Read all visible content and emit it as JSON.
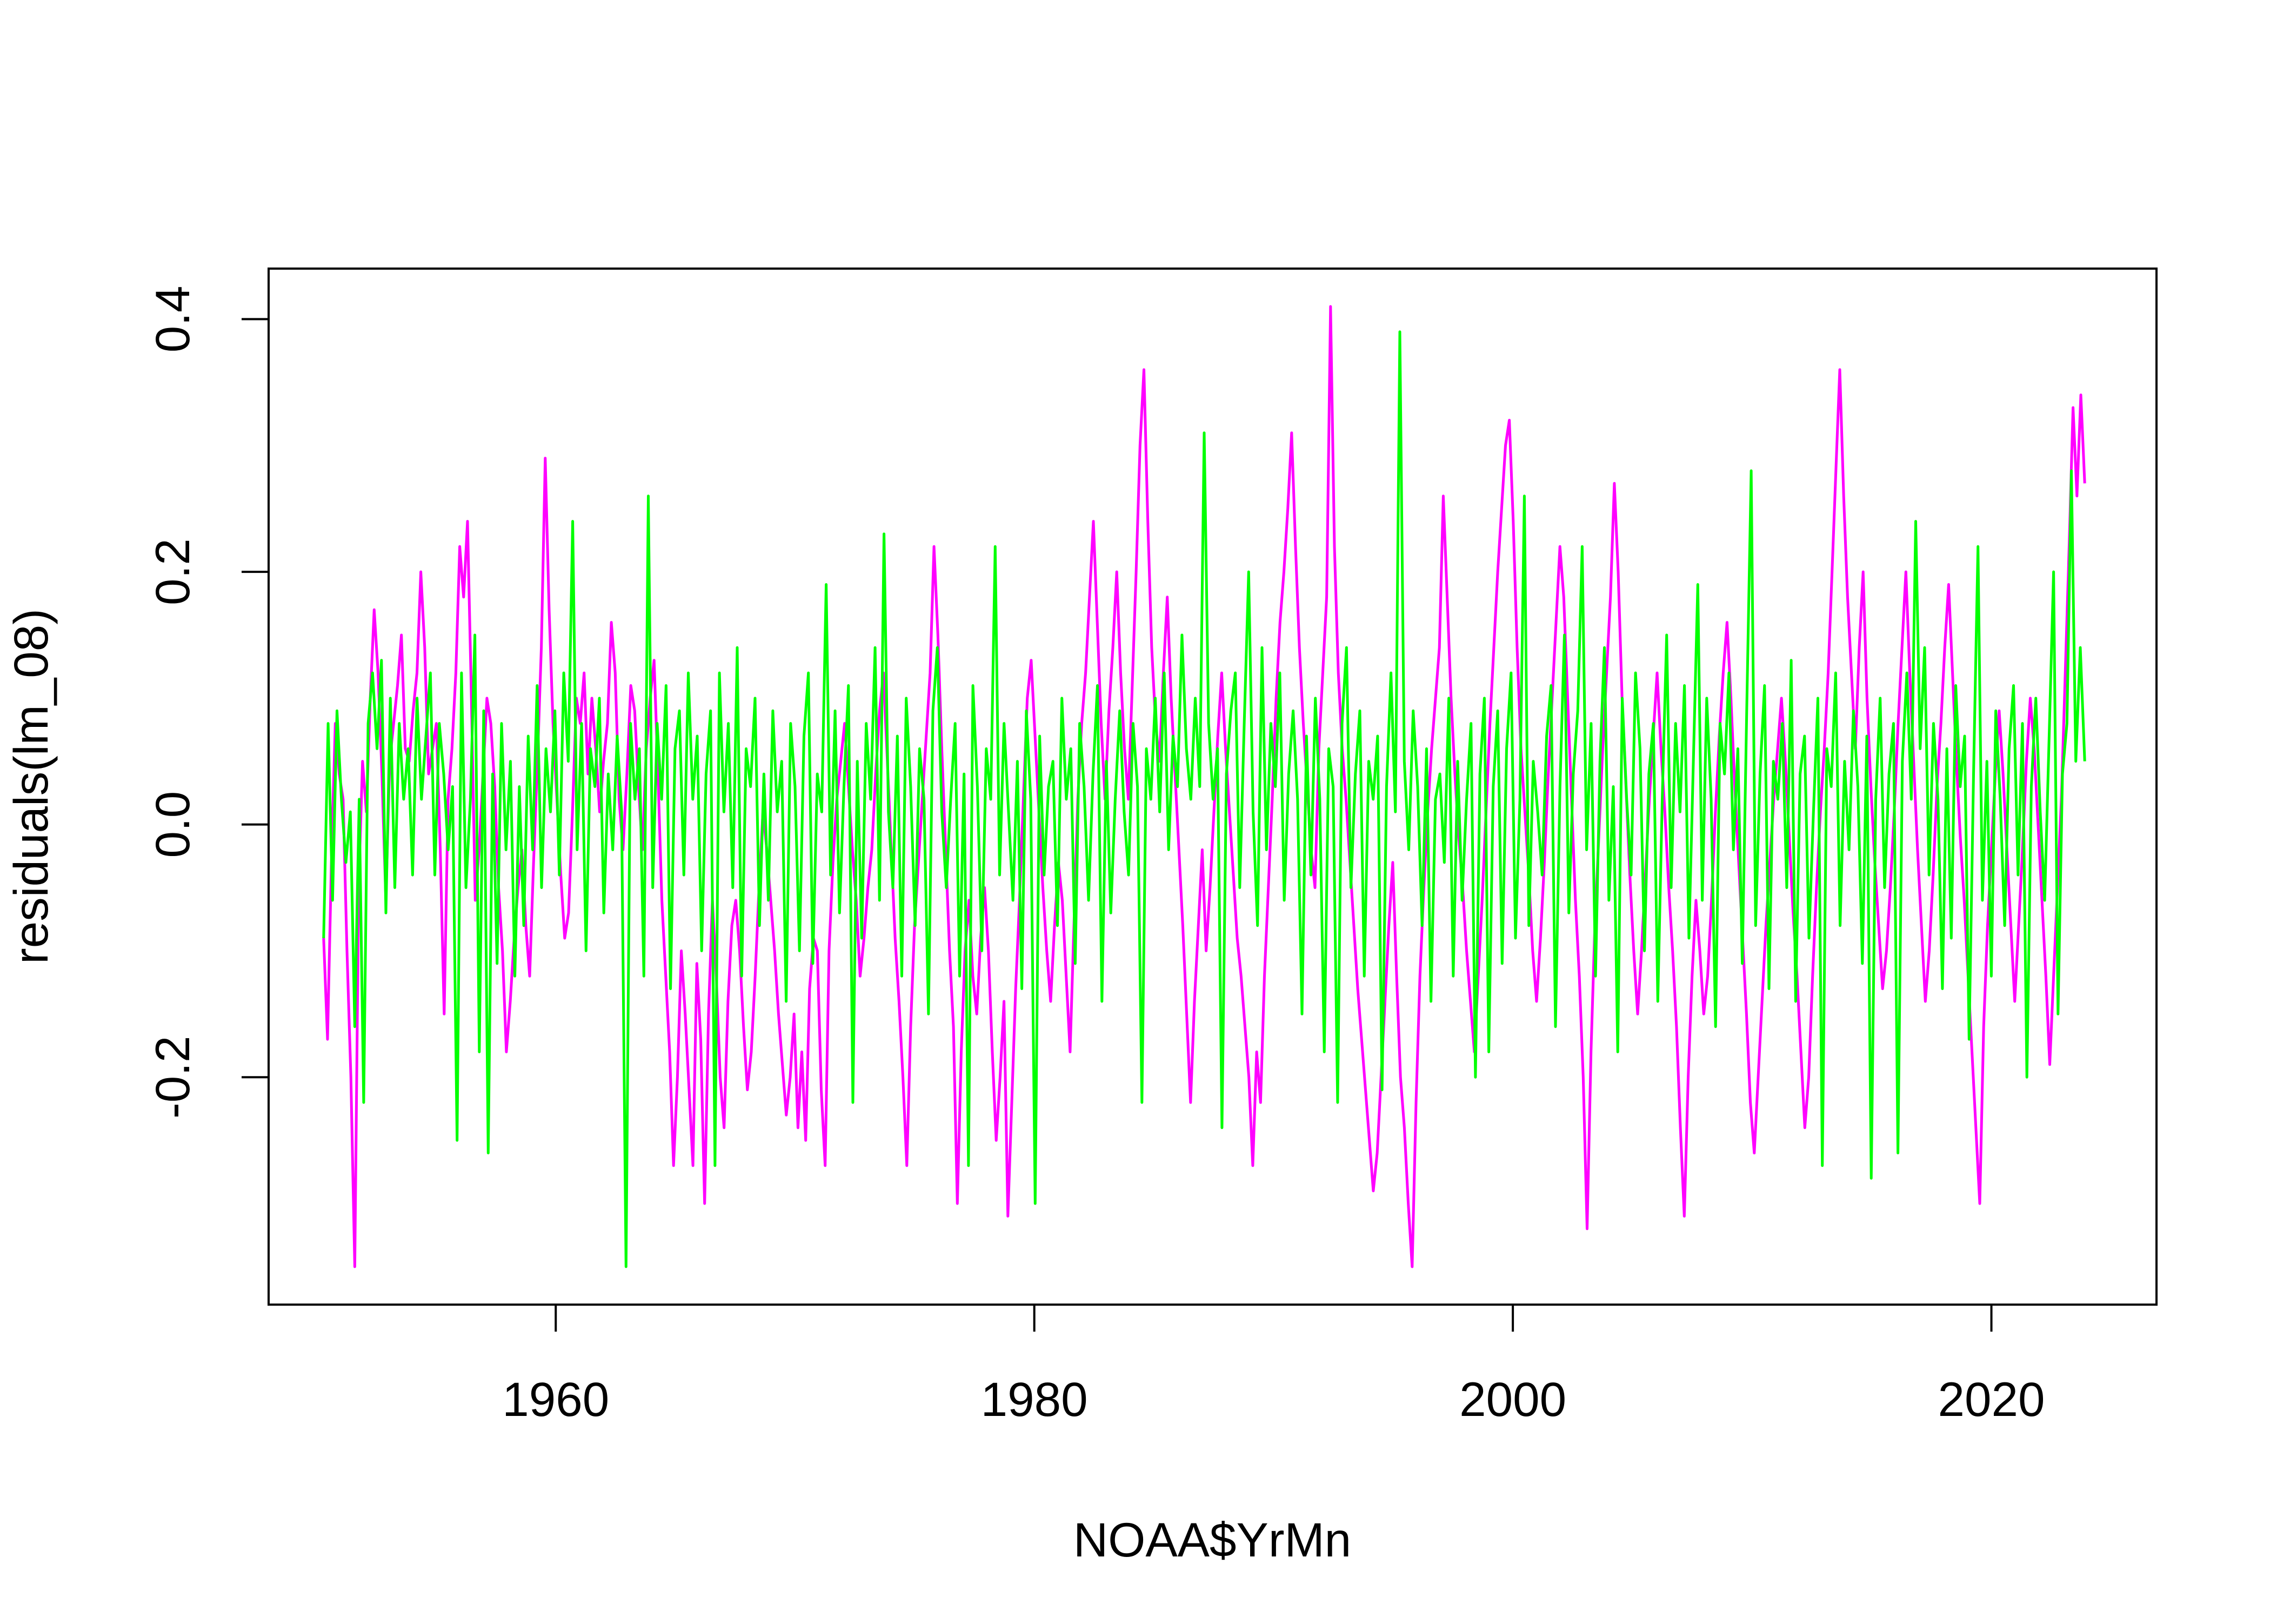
{
  "chart_data": {
    "type": "line",
    "title": "",
    "xlabel": "NOAA$YrMn",
    "ylabel": "residuals(lm_08)",
    "xlim": [
      1948.0,
      2026.9
    ],
    "ylim": [
      -0.38,
      0.44
    ],
    "x_ticks": [
      1960,
      1980,
      2000,
      2020
    ],
    "x_tick_labels": [
      "1960",
      "1980",
      "2000",
      "2020"
    ],
    "y_ticks": [
      -0.2,
      0.0,
      0.2,
      0.4
    ],
    "y_tick_labels": [
      "-0.2",
      "0.0",
      "0.2",
      "0.4"
    ],
    "x_start": 1950.3,
    "x_end": 2023.9,
    "grid": false,
    "legend": "none",
    "series": [
      {
        "color": "#ff00ff",
        "values": [
          -0.09,
          -0.17,
          -0.03,
          0.08,
          0.04,
          0.02,
          -0.1,
          -0.2,
          -0.35,
          -0.05,
          0.05,
          0.01,
          0.1,
          0.17,
          0.12,
          0.04,
          -0.06,
          0.05,
          0.08,
          0.11,
          0.15,
          0.06,
          0.05,
          0.09,
          0.12,
          0.2,
          0.14,
          0.04,
          0.06,
          0.08,
          -0.02,
          -0.15,
          0.02,
          0.06,
          0.12,
          0.22,
          0.18,
          0.24,
          0.1,
          -0.06,
          -0.02,
          0.04,
          0.1,
          0.08,
          0.03,
          -0.05,
          -0.1,
          -0.18,
          -0.14,
          -0.09,
          -0.05,
          -0.02,
          -0.08,
          -0.12,
          -0.03,
          0.05,
          0.14,
          0.29,
          0.17,
          0.08,
          0.02,
          -0.04,
          -0.09,
          -0.07,
          0.01,
          0.1,
          0.08,
          0.12,
          0.04,
          0.1,
          0.06,
          0.01,
          0.05,
          0.08,
          0.16,
          0.12,
          0.02,
          -0.02,
          0.04,
          0.11,
          0.09,
          0.03,
          -0.02,
          0.06,
          0.1,
          0.13,
          0.04,
          -0.06,
          -0.12,
          -0.18,
          -0.27,
          -0.2,
          -0.1,
          -0.15,
          -0.21,
          -0.27,
          -0.11,
          -0.17,
          -0.3,
          -0.15,
          -0.06,
          -0.12,
          -0.2,
          -0.24,
          -0.14,
          -0.08,
          -0.06,
          -0.1,
          -0.16,
          -0.21,
          -0.18,
          -0.12,
          -0.05,
          0.01,
          -0.02,
          -0.06,
          -0.1,
          -0.15,
          -0.19,
          -0.23,
          -0.2,
          -0.15,
          -0.24,
          -0.18,
          -0.25,
          -0.13,
          -0.09,
          -0.1,
          -0.21,
          -0.27,
          -0.1,
          -0.03,
          0.02,
          0.05,
          0.08,
          0.03,
          -0.02,
          -0.06,
          -0.12,
          -0.09,
          -0.05,
          -0.02,
          0.04,
          0.09,
          0.12,
          0.05,
          -0.02,
          -0.09,
          -0.14,
          -0.2,
          -0.27,
          -0.16,
          -0.08,
          -0.03,
          0.02,
          0.07,
          0.12,
          0.22,
          0.15,
          0.06,
          -0.02,
          -0.1,
          -0.16,
          -0.3,
          -0.18,
          -0.1,
          -0.06,
          -0.12,
          -0.15,
          -0.09,
          -0.05,
          -0.1,
          -0.18,
          -0.25,
          -0.2,
          -0.14,
          -0.31,
          -0.22,
          -0.13,
          -0.06,
          0.02,
          0.1,
          0.13,
          0.07,
          0.01,
          -0.05,
          -0.1,
          -0.14,
          -0.08,
          -0.03,
          -0.06,
          -0.12,
          -0.18,
          -0.08,
          0.02,
          0.08,
          0.12,
          0.18,
          0.24,
          0.16,
          0.08,
          0.02,
          0.09,
          0.14,
          0.2,
          0.12,
          0.06,
          0.02,
          0.11,
          0.2,
          0.3,
          0.36,
          0.24,
          0.14,
          0.08,
          0.05,
          0.12,
          0.18,
          0.1,
          0.04,
          -0.02,
          -0.08,
          -0.15,
          -0.22,
          -0.14,
          -0.08,
          -0.02,
          -0.1,
          -0.05,
          0.01,
          0.07,
          0.12,
          0.06,
          0.01,
          -0.04,
          -0.09,
          -0.12,
          -0.16,
          -0.2,
          -0.27,
          -0.18,
          -0.22,
          -0.12,
          -0.05,
          0.02,
          0.1,
          0.16,
          0.2,
          0.25,
          0.31,
          0.22,
          0.14,
          0.08,
          0.03,
          -0.02,
          -0.05,
          0.06,
          0.12,
          0.18,
          0.41,
          0.22,
          0.12,
          0.06,
          0.02,
          -0.03,
          -0.08,
          -0.13,
          -0.17,
          -0.21,
          -0.25,
          -0.29,
          -0.26,
          -0.2,
          -0.14,
          -0.08,
          -0.03,
          -0.12,
          -0.2,
          -0.24,
          -0.3,
          -0.35,
          -0.22,
          -0.12,
          -0.05,
          0.01,
          0.06,
          0.1,
          0.14,
          0.26,
          0.18,
          0.1,
          0.04,
          -0.01,
          -0.05,
          -0.1,
          -0.14,
          -0.18,
          -0.12,
          -0.06,
          0.01,
          0.08,
          0.14,
          0.2,
          0.25,
          0.3,
          0.32,
          0.24,
          0.14,
          0.06,
          0.01,
          -0.04,
          -0.1,
          -0.14,
          -0.09,
          -0.03,
          0.04,
          0.1,
          0.16,
          0.22,
          0.18,
          0.1,
          0.02,
          -0.06,
          -0.12,
          -0.2,
          -0.32,
          -0.18,
          -0.08,
          -0.01,
          0.06,
          0.12,
          0.18,
          0.27,
          0.2,
          0.1,
          0.03,
          -0.04,
          -0.1,
          -0.15,
          -0.1,
          -0.04,
          0.02,
          0.07,
          0.12,
          0.06,
          0.01,
          -0.05,
          -0.1,
          -0.16,
          -0.24,
          -0.31,
          -0.2,
          -0.12,
          -0.06,
          -0.1,
          -0.15,
          -0.12,
          -0.06,
          0.01,
          0.07,
          0.12,
          0.16,
          0.1,
          0.03,
          -0.03,
          -0.09,
          -0.15,
          -0.22,
          -0.26,
          -0.2,
          -0.14,
          -0.08,
          -0.03,
          0.02,
          0.06,
          0.1,
          0.05,
          -0.01,
          -0.07,
          -0.12,
          -0.18,
          -0.24,
          -0.2,
          -0.12,
          -0.05,
          0.01,
          0.06,
          0.12,
          0.2,
          0.28,
          0.36,
          0.26,
          0.18,
          0.12,
          0.06,
          0.14,
          0.2,
          0.1,
          0.03,
          -0.03,
          -0.08,
          -0.13,
          -0.1,
          -0.05,
          0.01,
          0.08,
          0.14,
          0.2,
          0.12,
          0.05,
          -0.02,
          -0.08,
          -0.14,
          -0.1,
          -0.04,
          0.03,
          0.08,
          0.14,
          0.19,
          0.12,
          0.05,
          -0.01,
          -0.06,
          -0.12,
          -0.18,
          -0.24,
          -0.3,
          -0.16,
          -0.08,
          -0.02,
          0.04,
          0.09,
          0.04,
          -0.02,
          -0.08,
          -0.14,
          -0.08,
          -0.02,
          0.05,
          0.1,
          0.06,
          0.0,
          -0.06,
          -0.12,
          -0.19,
          -0.12,
          -0.05,
          0.02,
          0.12,
          0.22,
          0.33,
          0.26,
          0.34,
          0.27
        ]
      },
      {
        "color": "#00ff00",
        "values": [
          -0.09,
          0.08,
          -0.06,
          0.09,
          0.02,
          -0.03,
          0.01,
          -0.16,
          0.02,
          -0.22,
          0.08,
          0.12,
          0.06,
          0.13,
          -0.07,
          0.1,
          -0.05,
          0.08,
          0.02,
          0.06,
          -0.04,
          0.1,
          0.02,
          0.07,
          0.12,
          -0.04,
          0.08,
          0.04,
          -0.02,
          0.03,
          -0.25,
          0.12,
          -0.05,
          0.02,
          0.15,
          -0.18,
          0.09,
          -0.26,
          0.04,
          -0.11,
          0.08,
          -0.02,
          0.05,
          -0.12,
          0.03,
          -0.08,
          0.07,
          -0.02,
          0.11,
          -0.05,
          0.06,
          0.01,
          0.09,
          -0.04,
          0.12,
          0.05,
          0.24,
          -0.02,
          0.08,
          -0.1,
          0.06,
          0.03,
          0.1,
          -0.07,
          0.04,
          -0.02,
          0.07,
          0.01,
          -0.35,
          0.08,
          0.02,
          0.06,
          -0.12,
          0.26,
          -0.05,
          0.08,
          0.02,
          0.11,
          -0.13,
          0.06,
          0.09,
          -0.04,
          0.12,
          0.02,
          0.07,
          -0.1,
          0.04,
          0.09,
          -0.27,
          0.12,
          0.01,
          0.08,
          -0.05,
          0.14,
          -0.12,
          0.06,
          0.03,
          0.1,
          -0.08,
          0.04,
          -0.06,
          0.09,
          0.01,
          0.05,
          -0.14,
          0.08,
          0.03,
          -0.1,
          0.07,
          0.12,
          -0.11,
          0.04,
          0.01,
          0.19,
          -0.04,
          0.09,
          -0.07,
          0.03,
          0.11,
          -0.22,
          0.05,
          -0.09,
          0.08,
          0.02,
          0.14,
          -0.06,
          0.23,
          0.01,
          -0.05,
          0.07,
          -0.12,
          0.1,
          0.03,
          -0.08,
          0.06,
          0.02,
          -0.15,
          0.09,
          0.14,
          0.01,
          -0.05,
          0.02,
          0.08,
          -0.12,
          0.04,
          -0.27,
          0.11,
          0.03,
          -0.1,
          0.06,
          0.02,
          0.22,
          -0.04,
          0.08,
          0.01,
          -0.06,
          0.05,
          -0.13,
          0.09,
          0.02,
          -0.3,
          0.07,
          -0.04,
          0.03,
          0.05,
          -0.08,
          0.1,
          0.02,
          0.06,
          -0.11,
          0.08,
          0.03,
          -0.06,
          0.04,
          0.11,
          -0.14,
          0.05,
          -0.07,
          0.02,
          0.09,
          0.01,
          -0.04,
          0.08,
          0.03,
          -0.22,
          0.06,
          0.02,
          0.1,
          0.01,
          0.12,
          -0.02,
          0.07,
          0.03,
          0.15,
          0.06,
          0.02,
          0.1,
          0.03,
          0.31,
          0.08,
          0.02,
          0.06,
          -0.24,
          0.04,
          0.09,
          0.12,
          -0.05,
          0.08,
          0.2,
          0.01,
          -0.08,
          0.14,
          -0.02,
          0.08,
          0.03,
          0.12,
          -0.06,
          0.04,
          0.09,
          0.02,
          -0.15,
          0.07,
          -0.04,
          0.1,
          0.02,
          -0.18,
          0.06,
          0.03,
          -0.22,
          0.08,
          0.14,
          -0.05,
          0.04,
          0.09,
          -0.12,
          0.05,
          0.02,
          0.07,
          -0.21,
          0.03,
          0.12,
          0.01,
          0.39,
          0.05,
          -0.02,
          0.09,
          0.03,
          -0.08,
          0.06,
          -0.14,
          0.02,
          0.04,
          -0.03,
          0.1,
          -0.12,
          0.05,
          -0.06,
          0.02,
          0.08,
          -0.2,
          0.04,
          0.1,
          -0.18,
          0.03,
          0.09,
          -0.11,
          0.06,
          0.12,
          -0.09,
          0.02,
          0.26,
          -0.08,
          0.05,
          0.01,
          -0.04,
          0.07,
          0.11,
          -0.16,
          0.03,
          0.15,
          -0.07,
          0.04,
          0.09,
          0.22,
          -0.02,
          0.08,
          -0.12,
          0.05,
          0.14,
          -0.06,
          0.03,
          -0.18,
          0.1,
          0.02,
          -0.04,
          0.12,
          0.06,
          -0.1,
          0.04,
          0.08,
          -0.14,
          0.02,
          0.15,
          -0.05,
          0.08,
          0.01,
          0.11,
          -0.09,
          0.05,
          0.19,
          -0.06,
          0.1,
          0.02,
          -0.16,
          0.08,
          0.04,
          0.12,
          -0.02,
          0.06,
          -0.11,
          0.09,
          0.28,
          -0.08,
          0.04,
          0.11,
          -0.13,
          0.05,
          0.02,
          0.08,
          -0.05,
          0.13,
          -0.14,
          0.04,
          0.07,
          -0.09,
          0.01,
          0.1,
          -0.27,
          0.06,
          0.03,
          0.12,
          -0.08,
          0.05,
          -0.02,
          0.09,
          0.03,
          -0.11,
          0.07,
          -0.28,
          0.02,
          0.1,
          -0.05,
          0.04,
          0.08,
          -0.26,
          0.05,
          0.12,
          0.02,
          0.24,
          0.06,
          0.14,
          -0.04,
          0.08,
          0.02,
          -0.13,
          0.06,
          -0.09,
          0.11,
          0.03,
          0.07,
          -0.17,
          0.04,
          0.22,
          -0.06,
          0.05,
          -0.12,
          0.09,
          0.02,
          -0.08,
          0.06,
          0.11,
          -0.04,
          0.08,
          -0.2,
          0.03,
          0.1,
          0.01,
          -0.06,
          0.07,
          0.2,
          -0.15,
          0.04,
          0.08,
          0.28,
          0.05,
          0.14,
          0.05
        ]
      }
    ]
  }
}
